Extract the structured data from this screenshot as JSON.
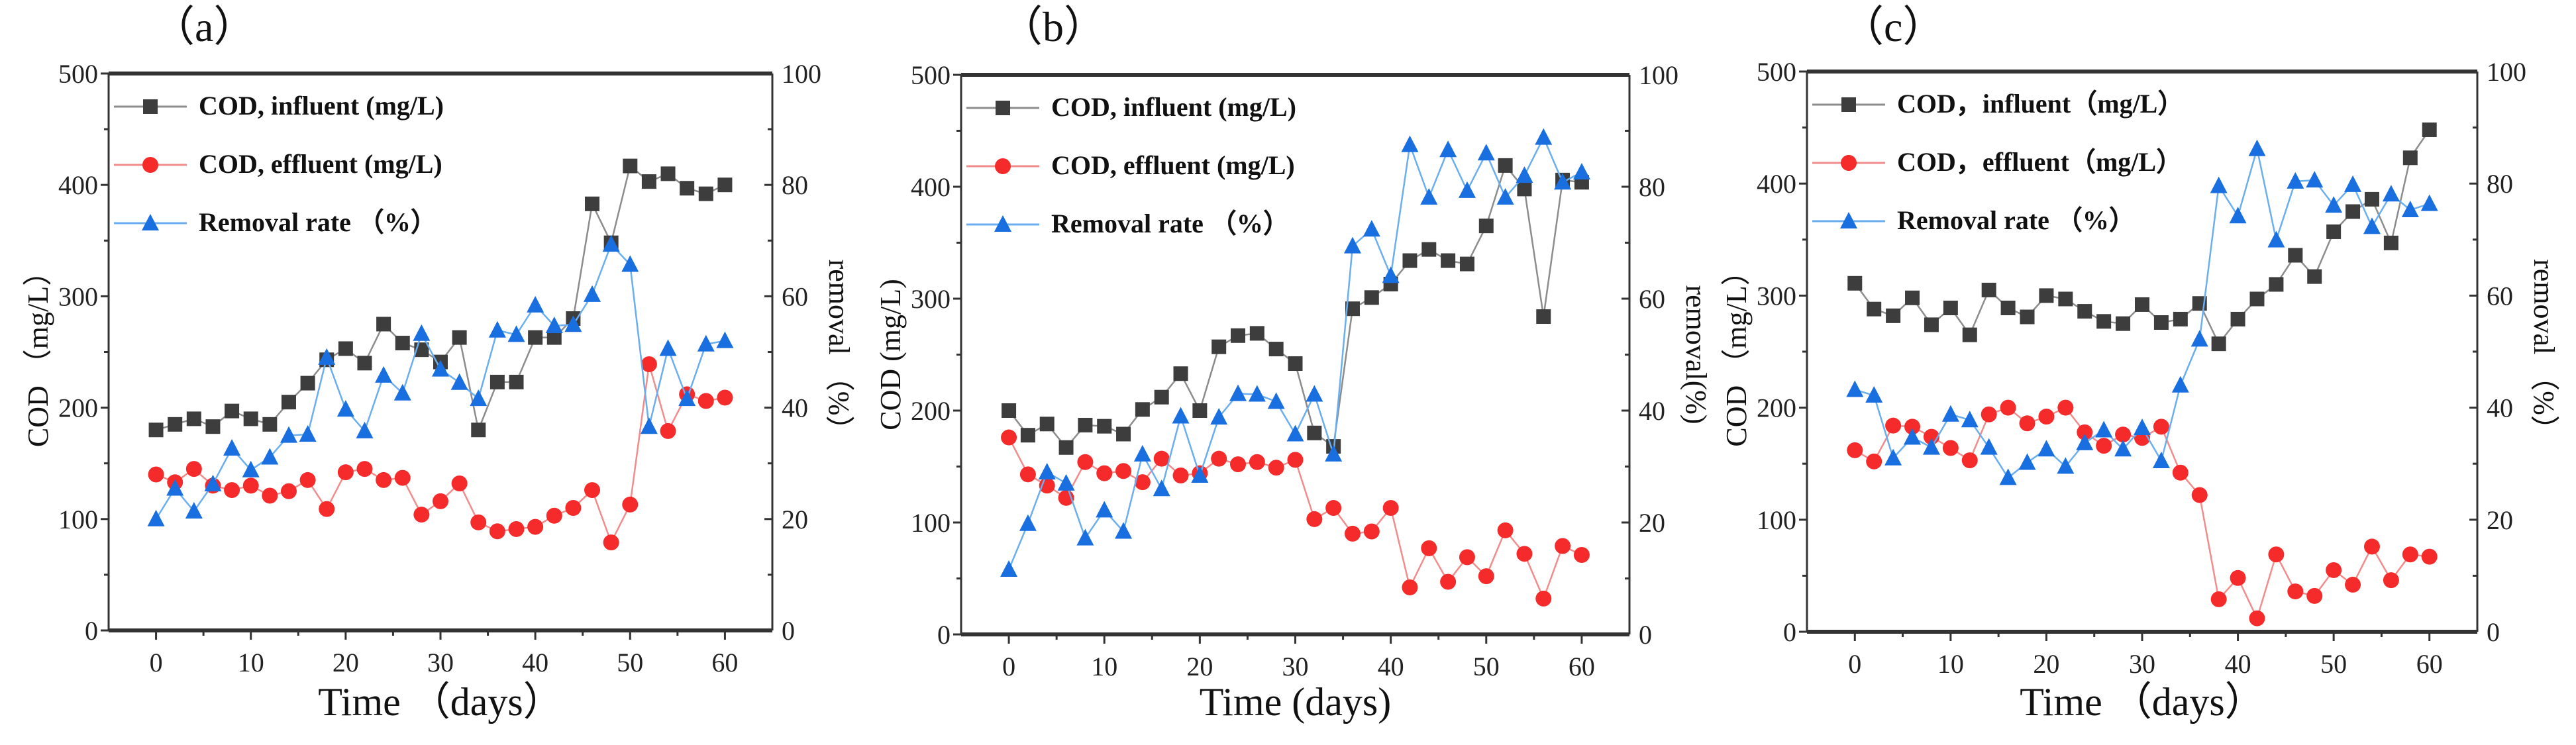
{
  "chart_data": [
    {
      "type": "line",
      "panel_label": "（a）",
      "xlabel": "Time （days）",
      "ylabel": "COD （mg/L）",
      "y2label": "removal （%）",
      "xlim": [
        -5,
        65
      ],
      "ylim": [
        0,
        500
      ],
      "y2lim": [
        0,
        100
      ],
      "xticks": [
        0,
        10,
        20,
        30,
        40,
        50,
        60
      ],
      "yticks": [
        0,
        100,
        200,
        300,
        400,
        500
      ],
      "y2ticks": [
        0,
        20,
        40,
        60,
        80,
        100
      ],
      "legend_position": "top-left",
      "x": [
        0,
        2,
        4,
        6,
        8,
        10,
        12,
        14,
        16,
        18,
        20,
        22,
        24,
        26,
        28,
        30,
        32,
        34,
        36,
        38,
        40,
        42,
        44,
        46,
        48,
        50,
        52,
        54,
        56,
        58,
        60
      ],
      "series": [
        {
          "name": "COD, influent (mg/L)",
          "axis": "left",
          "marker": "square",
          "color": "#3d3d3d",
          "line_color": "#8c8c8c",
          "values": [
            180,
            185,
            190,
            183,
            197,
            190,
            185,
            205,
            222,
            243,
            253,
            240,
            275,
            258,
            252,
            241,
            263,
            180,
            223,
            223,
            263,
            263,
            280,
            383,
            348,
            417,
            403,
            410,
            397,
            392,
            400
          ]
        },
        {
          "name": "COD, effluent (mg/L)",
          "axis": "left",
          "marker": "circle",
          "color": "#f52a2a",
          "line_color": "#f28b8b",
          "values": [
            140,
            133,
            145,
            130,
            126,
            130,
            121,
            125,
            135,
            109,
            142,
            145,
            135,
            137,
            104,
            116,
            132,
            97,
            89,
            91,
            93,
            103,
            110,
            126,
            79,
            113,
            239,
            179,
            212,
            206,
            209
          ]
        },
        {
          "name": "Removal rate （%）",
          "axis": "right",
          "marker": "triangle",
          "color": "#1a6fe0",
          "line_color": "#6aaef0",
          "values": [
            20,
            25.5,
            21.4,
            26.3,
            32.7,
            28.8,
            31.1,
            35,
            35.2,
            49,
            39.7,
            35.8,
            45.8,
            42.6,
            53.3,
            46.9,
            44.5,
            41.6,
            53.9,
            53.1,
            58.4,
            54.7,
            54.9,
            60.3,
            69.3,
            65.7,
            36.6,
            50.6,
            41.6,
            51.4,
            52
          ]
        }
      ]
    },
    {
      "type": "line",
      "panel_label": "（b）",
      "xlabel": "Time (days)",
      "ylabel": "COD (mg/L)",
      "y2label": "removal(%)",
      "xlim": [
        -5,
        65
      ],
      "ylim": [
        0,
        500
      ],
      "y2lim": [
        0,
        100
      ],
      "xticks": [
        0,
        10,
        20,
        30,
        40,
        50,
        60
      ],
      "yticks": [
        0,
        100,
        200,
        300,
        400,
        500
      ],
      "y2ticks": [
        0,
        20,
        40,
        60,
        80,
        100
      ],
      "legend_position": "top-left",
      "x": [
        0,
        2,
        4,
        6,
        8,
        10,
        12,
        14,
        16,
        18,
        20,
        22,
        24,
        26,
        28,
        30,
        32,
        34,
        36,
        38,
        40,
        42,
        44,
        46,
        48,
        50,
        52,
        54,
        56,
        58,
        60
      ],
      "series": [
        {
          "name": "COD, influent (mg/L)",
          "axis": "left",
          "marker": "square",
          "color": "#3d3d3d",
          "line_color": "#8c8c8c",
          "values": [
            200,
            178,
            188,
            167,
            187,
            186,
            179,
            201,
            212,
            233,
            200,
            257,
            267,
            269,
            255,
            242,
            180,
            168,
            291,
            301,
            313,
            334,
            344,
            334,
            331,
            365,
            419,
            398,
            284,
            406,
            404
          ]
        },
        {
          "name": "COD, effluent (mg/L)",
          "axis": "left",
          "marker": "circle",
          "color": "#f52a2a",
          "line_color": "#f28b8b",
          "values": [
            176,
            143,
            133,
            122,
            154,
            144,
            146,
            136,
            157,
            142,
            144,
            157,
            152,
            154,
            149,
            156,
            103,
            113,
            90,
            92,
            113,
            42,
            77,
            47,
            69,
            52,
            93,
            72,
            32,
            79,
            71
          ]
        },
        {
          "name": "Removal rate （%）",
          "axis": "right",
          "marker": "triangle",
          "color": "#1a6fe0",
          "line_color": "#6aaef0",
          "values": [
            11.6,
            19.8,
            29,
            27,
            17.2,
            22.2,
            18.4,
            32.2,
            26,
            39,
            28.4,
            38.8,
            43,
            42.9,
            41.6,
            35.8,
            42.9,
            32.2,
            69.4,
            72.4,
            64.1,
            87.5,
            78.1,
            86.6,
            79.3,
            86,
            78.1,
            82,
            88.8,
            80.8,
            82.6
          ]
        }
      ]
    },
    {
      "type": "line",
      "panel_label": "（c）",
      "xlabel": "Time （days）",
      "ylabel": "COD （mg/L）",
      "y2label": "removal （%）",
      "xlim": [
        -5,
        65
      ],
      "ylim": [
        0,
        500
      ],
      "y2lim": [
        0,
        100
      ],
      "xticks": [
        0,
        10,
        20,
        30,
        40,
        50,
        60
      ],
      "yticks": [
        0,
        100,
        200,
        300,
        400,
        500
      ],
      "y2ticks": [
        0,
        20,
        40,
        60,
        80,
        100
      ],
      "legend_position": "top-left",
      "x": [
        0,
        2,
        4,
        6,
        8,
        10,
        12,
        14,
        16,
        18,
        20,
        22,
        24,
        26,
        28,
        30,
        32,
        34,
        36,
        38,
        40,
        42,
        44,
        46,
        48,
        50,
        52,
        54,
        56,
        58,
        60
      ],
      "series": [
        {
          "name": "COD，influent（mg/L）",
          "axis": "left",
          "marker": "square",
          "color": "#3d3d3d",
          "line_color": "#8c8c8c",
          "values": [
            311,
            288,
            282,
            298,
            274,
            289,
            265,
            305,
            289,
            281,
            300,
            297,
            286,
            277,
            275,
            292,
            276,
            279,
            293,
            257,
            279,
            297,
            310,
            336,
            317,
            357,
            375,
            386,
            347,
            423,
            448
          ]
        },
        {
          "name": "COD，effluent（mg/L）",
          "axis": "left",
          "marker": "circle",
          "color": "#f52a2a",
          "line_color": "#f28b8b",
          "values": [
            162,
            152,
            184,
            183,
            174,
            164,
            153,
            194,
            200,
            186,
            192,
            200,
            178,
            166,
            176,
            173,
            183,
            142,
            122,
            29,
            48,
            12,
            69,
            36,
            32,
            55,
            42,
            76,
            46,
            69,
            67
          ]
        },
        {
          "name": "Removal rate （%）",
          "axis": "right",
          "marker": "triangle",
          "color": "#1a6fe0",
          "line_color": "#6aaef0",
          "values": [
            43.2,
            42.2,
            31,
            34.7,
            32.9,
            38.8,
            37.8,
            32.9,
            27.5,
            30.2,
            32.6,
            29.5,
            33.7,
            36,
            32.6,
            36.4,
            30.5,
            44,
            52.2,
            79.6,
            74.2,
            86.2,
            69.9,
            80.4,
            80.6,
            76.1,
            79.8,
            72.3,
            78.1,
            75.3,
            76.4
          ]
        }
      ]
    }
  ]
}
